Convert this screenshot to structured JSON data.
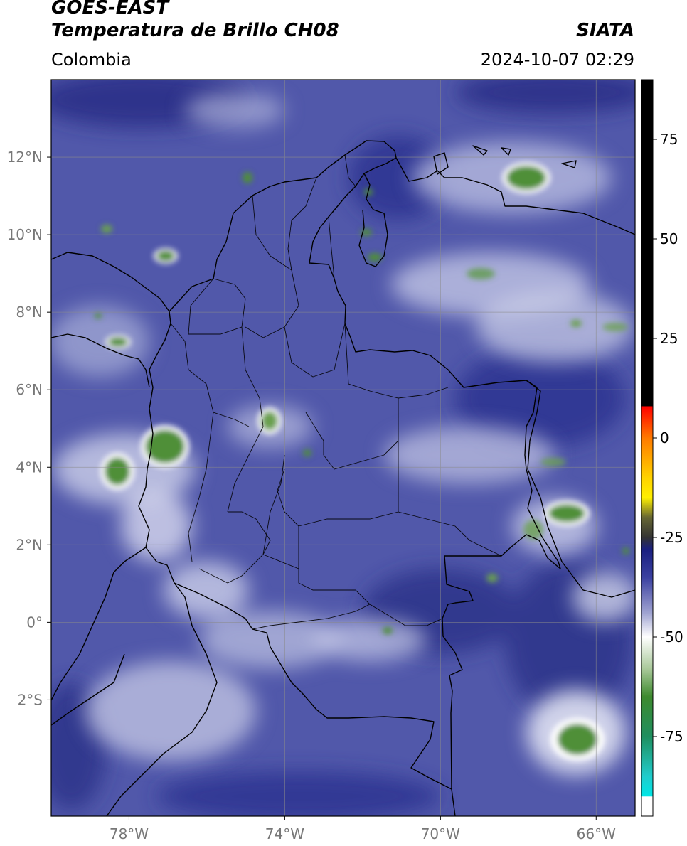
{
  "header": {
    "satellite": "GOES-EAST",
    "product": "Temperatura de Brillo CH08",
    "agency": "SIATA",
    "region": "Colombia",
    "datetime": "2024-10-07 02:29"
  },
  "map": {
    "lon_range": [
      -80,
      -65
    ],
    "lat_range": [
      -5,
      14
    ],
    "lat_ticks": [
      {
        "value": 12,
        "label": "12°N"
      },
      {
        "value": 10,
        "label": "10°N"
      },
      {
        "value": 8,
        "label": "8°N"
      },
      {
        "value": 6,
        "label": "6°N"
      },
      {
        "value": 4,
        "label": "4°N"
      },
      {
        "value": 2,
        "label": "2°N"
      },
      {
        "value": 0,
        "label": "0°"
      },
      {
        "value": -2,
        "label": "2°S"
      }
    ],
    "lon_ticks": [
      {
        "value": -78,
        "label": "78°W"
      },
      {
        "value": -74,
        "label": "74°W"
      },
      {
        "value": -70,
        "label": "70°W"
      },
      {
        "value": -66,
        "label": "66°W"
      }
    ],
    "colors": {
      "background": "#5158aa",
      "dark": "#2a3088",
      "cloud": "#e6e8f4",
      "cold_top": "#4f8f37",
      "border": "#000000",
      "grid": "#8a8a8a"
    }
  },
  "colorbar": {
    "range": [
      -95,
      90
    ],
    "ticks": [
      {
        "value": 75,
        "label": "75"
      },
      {
        "value": 50,
        "label": "50"
      },
      {
        "value": 25,
        "label": "25"
      },
      {
        "value": 0,
        "label": "0"
      },
      {
        "value": -25,
        "label": "-25"
      },
      {
        "value": -50,
        "label": "-50"
      },
      {
        "value": -75,
        "label": "-75"
      }
    ],
    "stops": [
      {
        "value": 90,
        "color": "#000000"
      },
      {
        "value": 8,
        "color": "#000000"
      },
      {
        "value": 7.9,
        "color": "#ff0000"
      },
      {
        "value": 0,
        "color": "#ff7a00"
      },
      {
        "value": -10,
        "color": "#ffd200"
      },
      {
        "value": -15,
        "color": "#fff000"
      },
      {
        "value": -20,
        "color": "#666633"
      },
      {
        "value": -25,
        "color": "#333333"
      },
      {
        "value": -28,
        "color": "#1a1f80"
      },
      {
        "value": -35,
        "color": "#3a40a0"
      },
      {
        "value": -44,
        "color": "#a0a4d2"
      },
      {
        "value": -50,
        "color": "#ffffff"
      },
      {
        "value": -58,
        "color": "#a9c99a"
      },
      {
        "value": -65,
        "color": "#3d8a2e"
      },
      {
        "value": -75,
        "color": "#1f8f5f"
      },
      {
        "value": -85,
        "color": "#20cccc"
      },
      {
        "value": -90,
        "color": "#00e6e6"
      },
      {
        "value": -90.1,
        "color": "#ffffff"
      },
      {
        "value": -95,
        "color": "#ffffff"
      }
    ]
  }
}
